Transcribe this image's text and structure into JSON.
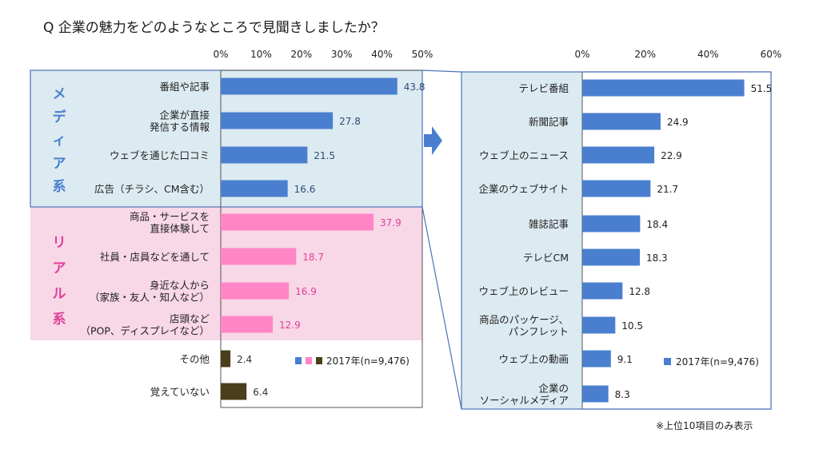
{
  "title": "Q 企業の魅力をどのようなところで見聞きしましたか？",
  "footnote": "※上位10項目のみ表示",
  "colors": {
    "media_bg": "#dcebf1",
    "real_bg": "#f8d7e6",
    "media_bar": "#4a7fcf",
    "real_bar": "#ff85c6",
    "other_bar": "#4a3e1c",
    "media_value": "#2e4a7a",
    "real_value": "#e0409a",
    "other_value": "#333333",
    "frame": "#4a73b8",
    "arrow": "#4a7fcf"
  },
  "groups": {
    "media": "メディア系",
    "real": "リアル系"
  },
  "chart_data": [
    {
      "type": "bar",
      "orientation": "horizontal",
      "categories": [
        "番組や記事",
        "企業が直接\n発信する情報",
        "ウェブを通じた口コミ",
        "広告（チラシ、CM含む）",
        "商品・サービスを\n直接体験して",
        "社員・店員などを通して",
        "身近な人から\n（家族・友人・知人など）",
        "店頭など\n（POP、ディスプレイなど）",
        "その他",
        "覚えていない"
      ],
      "category_group": [
        "media",
        "media",
        "media",
        "media",
        "real",
        "real",
        "real",
        "real",
        "other",
        "other"
      ],
      "values": [
        43.8,
        27.8,
        21.5,
        16.6,
        37.9,
        18.7,
        16.9,
        12.9,
        2.4,
        6.4
      ],
      "value_labels": [
        "43.8",
        "27.8",
        "21.5",
        "16.6",
        "37.9",
        "18.7",
        "16.9",
        "12.9",
        "2.4",
        "6.4"
      ],
      "xlim": [
        0,
        50
      ],
      "ticks": [
        "0%",
        "10%",
        "20%",
        "30%",
        "40%",
        "50%"
      ],
      "legend": "2017年(n=9,476)",
      "legend_position": "bottom-right"
    },
    {
      "type": "bar",
      "orientation": "horizontal",
      "categories": [
        "テレビ番組",
        "新聞記事",
        "ウェブ上のニュース",
        "企業のウェブサイト",
        "雑誌記事",
        "テレビCM",
        "ウェブ上のレビュー",
        "商品のパッケージ、\nパンフレット",
        "ウェブ上の動画",
        "企業の\nソーシャルメディア"
      ],
      "values": [
        51.5,
        24.9,
        22.9,
        21.7,
        18.4,
        18.3,
        12.8,
        10.5,
        9.1,
        8.3
      ],
      "value_labels": [
        "51.5",
        "24.9",
        "22.9",
        "21.7",
        "18.4",
        "18.3",
        "12.8",
        "10.5",
        "9.1",
        "8.3"
      ],
      "xlim": [
        0,
        60
      ],
      "ticks": [
        "0%",
        "20%",
        "40%",
        "60%"
      ],
      "legend": "2017年(n=9,476)",
      "legend_position": "bottom-right"
    }
  ]
}
